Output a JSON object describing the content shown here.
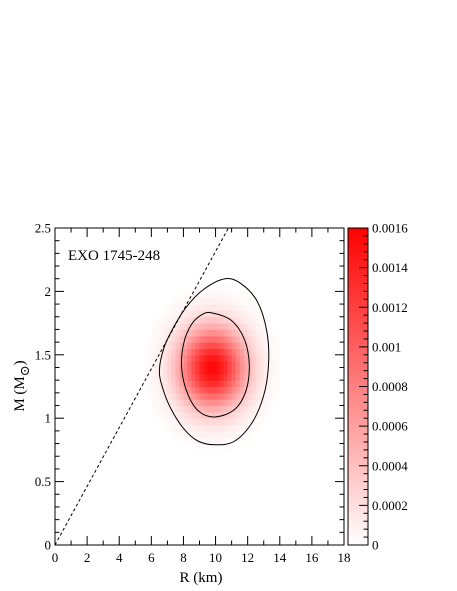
{
  "chart_data": {
    "type": "heatmap",
    "annotation": "EXO 1745-248",
    "xlabel": "R (km)",
    "ylabel_main": "M (M",
    "ylabel_sub": "⊙",
    "ylabel_close": ")",
    "xlim": [
      0,
      18
    ],
    "ylim": [
      0,
      2.5
    ],
    "x_ticks": [
      0,
      2,
      4,
      6,
      8,
      10,
      12,
      14,
      16,
      18
    ],
    "x_tick_labels": [
      "0",
      "2",
      "4",
      "6",
      "8",
      "10",
      "12",
      "14",
      "16",
      "18"
    ],
    "y_ticks": [
      0,
      0.5,
      1,
      1.5,
      2,
      2.5
    ],
    "y_tick_labels": [
      "0",
      "0.5",
      "1",
      "1.5",
      "2",
      "2.5"
    ],
    "colorbar": {
      "range": [
        0,
        0.0016
      ],
      "ticks": [
        0,
        0.0002,
        0.0004,
        0.0006,
        0.0008,
        0.001,
        0.0012,
        0.0014,
        0.0016
      ],
      "tick_labels": [
        "0",
        "0.0002",
        "0.0004",
        "0.0006",
        "0.0008",
        "0.001",
        "0.0012",
        "0.0014",
        "0.0016"
      ],
      "color_min": "#ffffff",
      "color_max": "#ff0000"
    },
    "distribution": {
      "peak_R": 9.8,
      "peak_M": 1.4,
      "peak_density": 0.00155,
      "sigma_R": 1.45,
      "sigma_M": 0.22
    },
    "limit_line": {
      "style": "dashed",
      "points": [
        [
          0,
          0
        ],
        [
          10.8,
          2.5
        ]
      ]
    },
    "contours": [
      {
        "level": "inner",
        "points": [
          [
            9.8,
            1.83
          ],
          [
            11.0,
            1.77
          ],
          [
            11.8,
            1.62
          ],
          [
            12.1,
            1.42
          ],
          [
            11.9,
            1.22
          ],
          [
            11.2,
            1.07
          ],
          [
            10.0,
            1.01
          ],
          [
            9.0,
            1.05
          ],
          [
            8.3,
            1.18
          ],
          [
            7.9,
            1.38
          ],
          [
            8.0,
            1.58
          ],
          [
            8.5,
            1.74
          ],
          [
            9.2,
            1.82
          ]
        ]
      },
      {
        "level": "outer",
        "points": [
          [
            10.6,
            2.1
          ],
          [
            11.6,
            2.06
          ],
          [
            12.6,
            1.92
          ],
          [
            13.2,
            1.68
          ],
          [
            13.3,
            1.42
          ],
          [
            13.0,
            1.18
          ],
          [
            12.3,
            0.97
          ],
          [
            11.2,
            0.82
          ],
          [
            10.0,
            0.79
          ],
          [
            8.9,
            0.82
          ],
          [
            8.0,
            0.92
          ],
          [
            7.2,
            1.08
          ],
          [
            6.7,
            1.24
          ],
          [
            6.5,
            1.38
          ],
          [
            6.8,
            1.56
          ],
          [
            7.4,
            1.72
          ],
          [
            8.2,
            1.88
          ],
          [
            9.3,
            2.02
          ]
        ]
      }
    ]
  }
}
